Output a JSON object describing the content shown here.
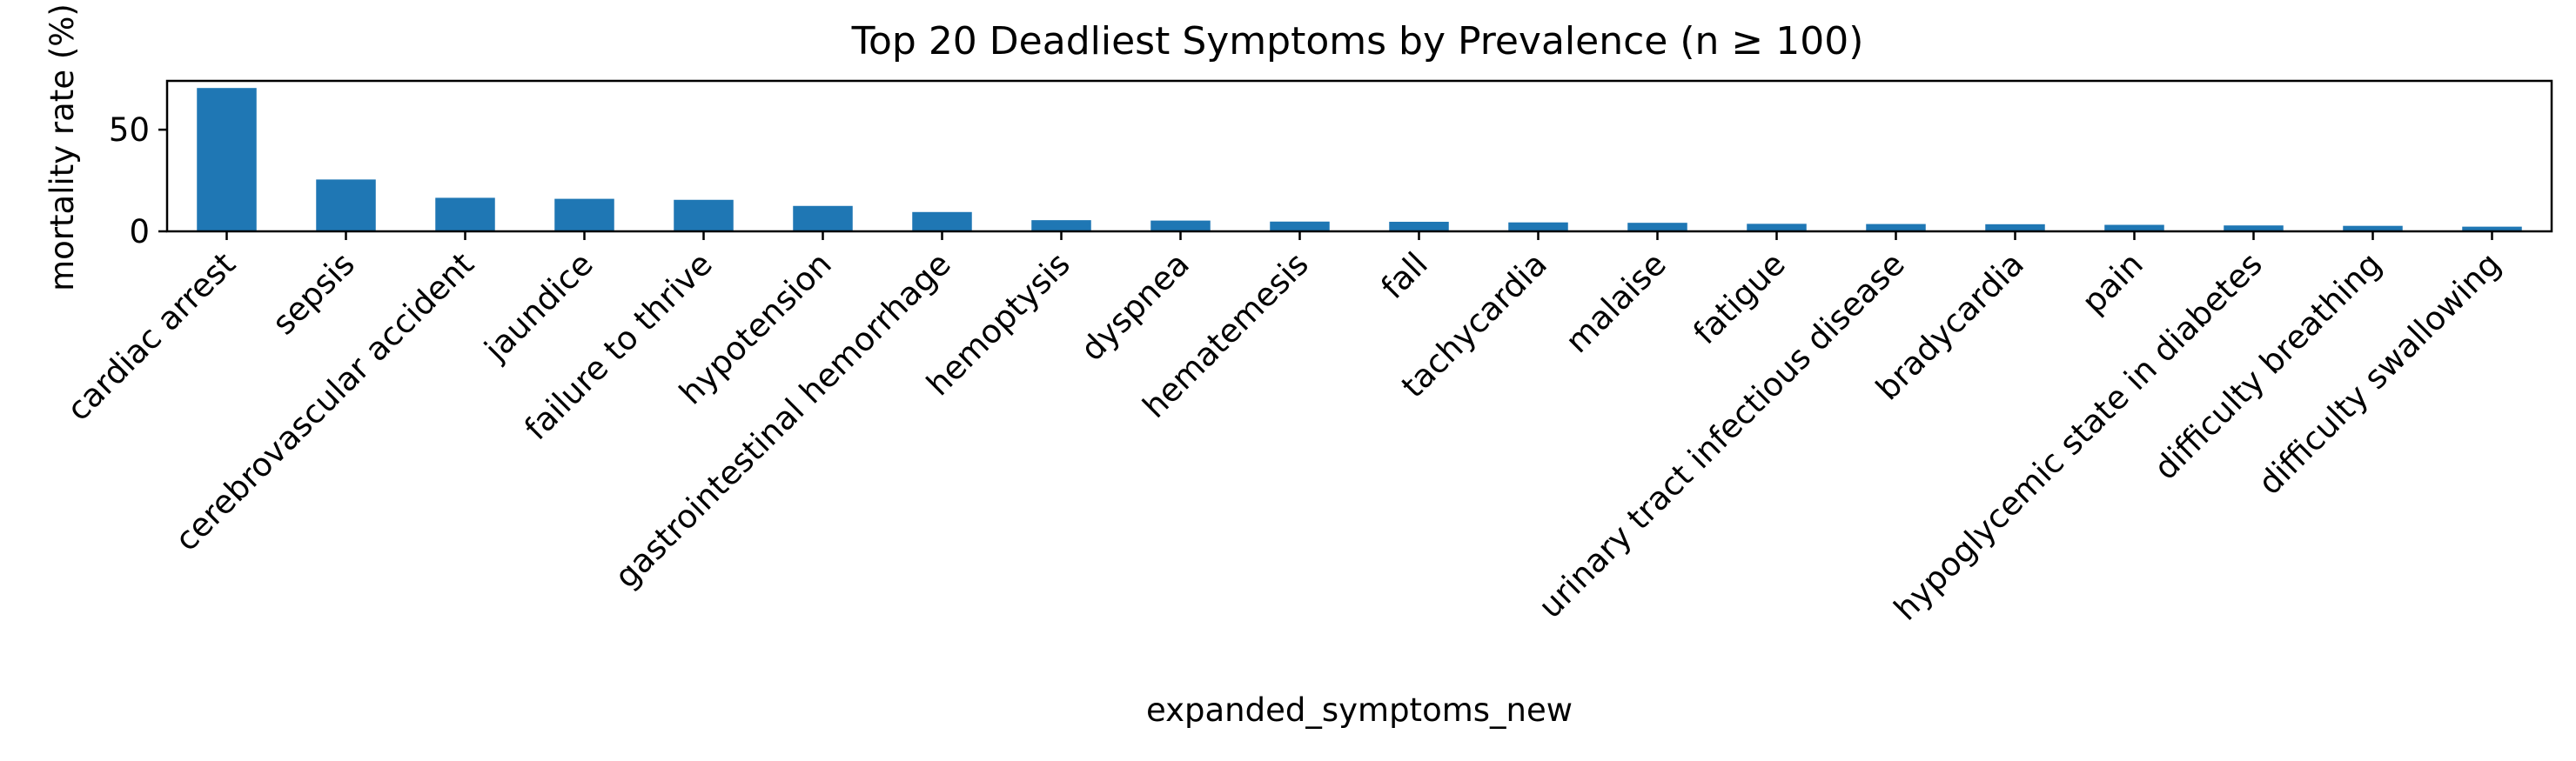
{
  "chart_data": {
    "type": "bar",
    "title": "Top 20 Deadliest Symptoms by Prevalence (n ≥ 100)",
    "xlabel": "expanded_symptoms_new",
    "ylabel": "mortality rate (%)",
    "ylim": [
      0,
      74
    ],
    "yticks": [
      0,
      50
    ],
    "grid": false,
    "legend": "none",
    "bar_color": "#1f77b4",
    "categories": [
      "cardiac arrest",
      "sepsis",
      "cerebrovascular accident",
      "jaundice",
      "failure to thrive",
      "hypotension",
      "gastrointestinal hemorrhage",
      "hemoptysis",
      "dyspnea",
      "hematemesis",
      "fall",
      "tachycardia",
      "malaise",
      "fatigue",
      "urinary tract infectious disease",
      "bradycardia",
      "pain",
      "hypoglycemic state in diabetes",
      "difficulty breathing",
      "difficulty swallowing"
    ],
    "values": [
      70.5,
      25.5,
      16.5,
      16.0,
      15.5,
      12.5,
      9.5,
      5.5,
      5.3,
      4.8,
      4.7,
      4.4,
      4.2,
      3.7,
      3.6,
      3.5,
      3.2,
      2.9,
      2.7,
      2.3
    ]
  }
}
